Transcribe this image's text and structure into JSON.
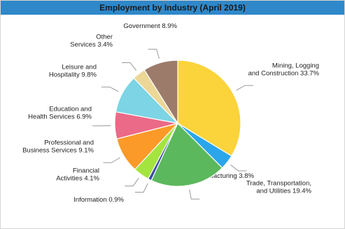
{
  "chart_data": {
    "type": "pie",
    "title": "Employment by Industry (April 2019)",
    "slices": [
      {
        "label_lines": [
          "Mining, Logging",
          "and Construction 33.7%"
        ],
        "value": 33.7,
        "color": "#fbd33a",
        "label_side": "right"
      },
      {
        "label_lines": [
          "Manufacturing 3.8%"
        ],
        "value": 3.8,
        "color": "#2ba6eb",
        "label_side": "right"
      },
      {
        "label_lines": [
          "Trade, Transportation,",
          "and Utilities 19.4%"
        ],
        "value": 19.4,
        "color": "#5cb85c",
        "label_side": "right"
      },
      {
        "label_lines": [
          "Information 0.9%"
        ],
        "value": 0.9,
        "color": "#3b4aa8",
        "label_side": "left"
      },
      {
        "label_lines": [
          "Financial",
          "Activities 4.1%"
        ],
        "value": 4.1,
        "color": "#a4e43f",
        "label_side": "left"
      },
      {
        "label_lines": [
          "Professional and",
          "Business Services 9.1%"
        ],
        "value": 9.1,
        "color": "#fb9a29",
        "label_side": "left"
      },
      {
        "label_lines": [
          "Education and",
          "Health Services 6.9%"
        ],
        "value": 6.9,
        "color": "#eb6a87",
        "label_side": "left"
      },
      {
        "label_lines": [
          "Leisure and",
          "Hospitality 9.8%"
        ],
        "value": 9.8,
        "color": "#7cd4e4",
        "label_side": "left"
      },
      {
        "label_lines": [
          "Other",
          "Services 3.4%"
        ],
        "value": 3.4,
        "color": "#ecd797",
        "label_side": "left"
      },
      {
        "label_lines": [
          "Government 8.9%"
        ],
        "value": 8.9,
        "color": "#9c7b6b",
        "label_side": "left"
      }
    ],
    "start_angle_deg": 0,
    "direction": "clockwise",
    "legend": "none"
  }
}
